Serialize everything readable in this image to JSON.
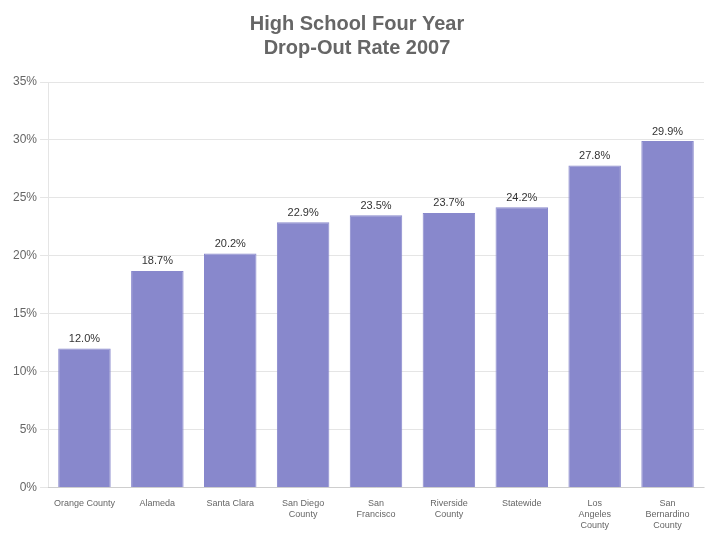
{
  "chart_data": {
    "type": "bar",
    "title": "High School Four Year\nDrop-Out Rate 2007",
    "categories": [
      "Orange County",
      "Alameda",
      "Santa Clara",
      "San Diego\nCounty",
      "San\nFrancisco",
      "Riverside\nCounty",
      "Statewide",
      "Los\nAngeles\nCounty",
      "San\nBernardino\nCounty"
    ],
    "values": [
      12.0,
      18.7,
      20.2,
      22.9,
      23.5,
      23.7,
      24.2,
      27.8,
      29.9
    ],
    "value_labels": [
      "12.0%",
      "18.7%",
      "20.2%",
      "22.9%",
      "23.5%",
      "23.7%",
      "24.2%",
      "27.8%",
      "29.9%"
    ],
    "data_labels": true,
    "color": "#8888CC",
    "ylim": [
      0,
      35
    ],
    "yticks": [
      {
        "value": 0,
        "label": "0%"
      },
      {
        "value": 5,
        "label": "5%"
      },
      {
        "value": 10,
        "label": "10%"
      },
      {
        "value": 15,
        "label": "15%"
      },
      {
        "value": 20,
        "label": "20%"
      },
      {
        "value": 25,
        "label": "25%"
      },
      {
        "value": 30,
        "label": "30%"
      },
      {
        "value": 35,
        "label": "35%"
      }
    ],
    "grid": true
  }
}
